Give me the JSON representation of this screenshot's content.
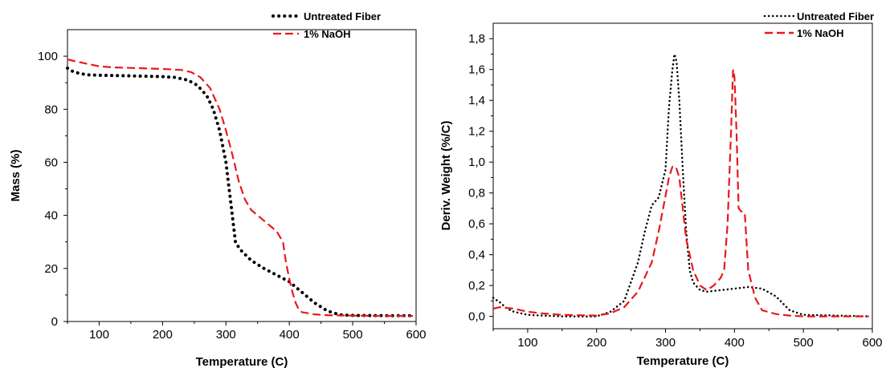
{
  "chart_data": [
    {
      "type": "line",
      "title": "",
      "xlabel": "Temperature (C)",
      "ylabel": "Mass (%)",
      "xlim": [
        50,
        600
      ],
      "ylim": [
        0,
        110
      ],
      "xticks": [
        100,
        200,
        300,
        400,
        500,
        600
      ],
      "xtick_labels": [
        "100",
        "200",
        "300",
        "400",
        "500",
        "600"
      ],
      "yticks": [
        0,
        20,
        40,
        60,
        80,
        100
      ],
      "ytick_labels": [
        "0",
        "20",
        "40",
        "60",
        "80",
        "100"
      ],
      "grid": false,
      "legend": "top-right",
      "series": [
        {
          "name": "Untreated Fiber",
          "color": "#000000",
          "style": "dotted",
          "x": [
            50,
            60,
            80,
            100,
            150,
            200,
            220,
            240,
            255,
            270,
            280,
            290,
            300,
            310,
            315,
            320,
            325,
            340,
            360,
            380,
            400,
            420,
            440,
            460,
            480,
            500,
            550,
            595
          ],
          "y": [
            95.5,
            94,
            93,
            92.8,
            92.6,
            92.3,
            92,
            91,
            89,
            85,
            80,
            72,
            60,
            40,
            30,
            28,
            26.5,
            23,
            20,
            17.5,
            15,
            11,
            7,
            4,
            2.5,
            2.3,
            2.2,
            2.2
          ]
        },
        {
          "name": "1% NaOH",
          "color": "#e8191c",
          "style": "dashed",
          "x": [
            50,
            60,
            80,
            100,
            120,
            150,
            200,
            230,
            245,
            260,
            275,
            290,
            300,
            310,
            320,
            330,
            340,
            350,
            370,
            380,
            390,
            395,
            400,
            405,
            410,
            415,
            420,
            440,
            460,
            500,
            550,
            595
          ],
          "y": [
            98.8,
            98.2,
            97.2,
            96.2,
            95.8,
            95.6,
            95.2,
            94.8,
            94,
            92,
            88,
            80,
            72,
            63,
            53,
            46,
            42,
            40,
            36,
            34,
            30,
            22,
            16,
            11,
            7,
            4.5,
            3.5,
            2.7,
            2.4,
            2.2,
            2.1,
            2.1
          ]
        }
      ]
    },
    {
      "type": "line",
      "title": "",
      "xlabel": "Temperature (C)",
      "ylabel": "Deriv. Weight (%/C)",
      "xlim": [
        50,
        600
      ],
      "ylim": [
        -0.08,
        1.9
      ],
      "xticks": [
        100,
        200,
        300,
        400,
        500,
        600
      ],
      "xtick_labels": [
        "100",
        "200",
        "300",
        "400",
        "500",
        "600"
      ],
      "yticks": [
        0,
        0.2,
        0.4,
        0.6,
        0.8,
        1.0,
        1.2,
        1.4,
        1.6,
        1.8
      ],
      "ytick_labels": [
        "0,0",
        "0,2",
        "0,4",
        "0,6",
        "0,8",
        "1,0",
        "1,2",
        "1,4",
        "1,6",
        "1,8"
      ],
      "grid": false,
      "legend": "top-right",
      "series": [
        {
          "name": "Untreated Fiber",
          "color": "#000000",
          "style": "dotted",
          "x": [
            50,
            60,
            70,
            80,
            100,
            120,
            150,
            180,
            200,
            220,
            240,
            260,
            270,
            280,
            290,
            300,
            305,
            310,
            313,
            316,
            320,
            325,
            330,
            335,
            340,
            350,
            360,
            380,
            400,
            420,
            440,
            460,
            480,
            500,
            550,
            595
          ],
          "y": [
            0.12,
            0.09,
            0.05,
            0.03,
            0.01,
            0.005,
            0.0,
            0.0,
            0.0,
            0.03,
            0.1,
            0.35,
            0.55,
            0.72,
            0.77,
            0.95,
            1.35,
            1.6,
            1.7,
            1.65,
            1.4,
            0.95,
            0.55,
            0.3,
            0.22,
            0.17,
            0.16,
            0.17,
            0.18,
            0.19,
            0.18,
            0.13,
            0.04,
            0.01,
            0.005,
            0.0
          ]
        },
        {
          "name": "1% NaOH",
          "color": "#e8191c",
          "style": "dashed",
          "x": [
            50,
            60,
            80,
            100,
            120,
            150,
            200,
            220,
            240,
            260,
            280,
            290,
            300,
            305,
            310,
            315,
            320,
            325,
            330,
            340,
            350,
            360,
            370,
            380,
            385,
            390,
            395,
            398,
            400,
            403,
            406,
            410,
            415,
            420,
            430,
            440,
            460,
            480,
            500,
            550,
            595
          ],
          "y": [
            0.05,
            0.06,
            0.05,
            0.03,
            0.02,
            0.01,
            0.005,
            0.02,
            0.06,
            0.16,
            0.35,
            0.55,
            0.78,
            0.9,
            0.97,
            0.97,
            0.9,
            0.7,
            0.5,
            0.3,
            0.2,
            0.17,
            0.2,
            0.25,
            0.3,
            0.6,
            1.2,
            1.6,
            1.55,
            1.2,
            0.7,
            0.68,
            0.67,
            0.3,
            0.12,
            0.04,
            0.015,
            0.005,
            0.0,
            0.0,
            0.0
          ]
        }
      ]
    }
  ]
}
